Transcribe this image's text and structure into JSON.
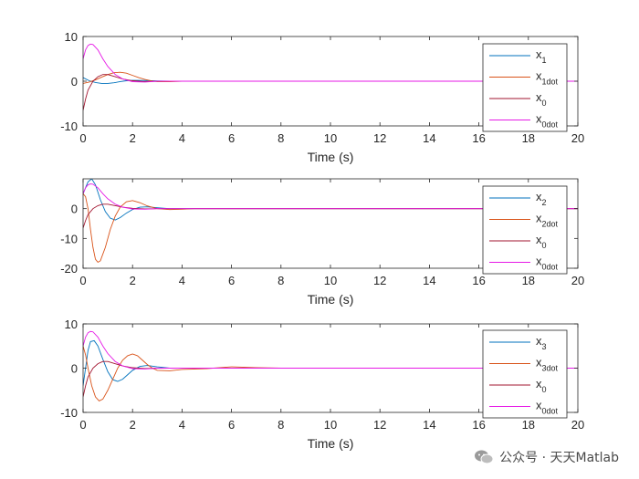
{
  "watermark": {
    "text": "公众号 · 天天Matlab"
  },
  "chart_data": [
    {
      "type": "line",
      "xlabel": "Time (s)",
      "xlim": [
        0,
        20
      ],
      "ylim": [
        -10,
        10
      ],
      "xticks": [
        0,
        2,
        4,
        6,
        8,
        10,
        12,
        14,
        16,
        18,
        20
      ],
      "yticks": [
        -10,
        0,
        10
      ],
      "legend_position": "top-right",
      "series": [
        {
          "name": "x1",
          "base": "x",
          "sub": "1",
          "color": "#0072BD",
          "points": [
            [
              0,
              0.8
            ],
            [
              0.25,
              0.1
            ],
            [
              0.5,
              -0.3
            ],
            [
              0.75,
              -0.5
            ],
            [
              1.0,
              -0.5
            ],
            [
              1.25,
              -0.35
            ],
            [
              1.5,
              -0.1
            ],
            [
              1.75,
              0.1
            ],
            [
              2.0,
              0.2
            ],
            [
              2.5,
              0.15
            ],
            [
              3.0,
              0.05
            ],
            [
              3.5,
              0
            ],
            [
              4.0,
              0
            ],
            [
              20,
              0
            ]
          ]
        },
        {
          "name": "x1dot",
          "base": "x",
          "sub": "1dot",
          "color": "#D95319",
          "points": [
            [
              0,
              -0.5
            ],
            [
              0.25,
              -0.2
            ],
            [
              0.5,
              0.3
            ],
            [
              0.75,
              0.9
            ],
            [
              1.0,
              1.5
            ],
            [
              1.25,
              1.9
            ],
            [
              1.5,
              2.0
            ],
            [
              1.75,
              1.8
            ],
            [
              2.0,
              1.3
            ],
            [
              2.25,
              0.8
            ],
            [
              2.5,
              0.4
            ],
            [
              2.75,
              0.1
            ],
            [
              3.0,
              -0.1
            ],
            [
              3.5,
              -0.1
            ],
            [
              4.0,
              0
            ],
            [
              20,
              0
            ]
          ]
        },
        {
          "name": "x0",
          "base": "x",
          "sub": "0",
          "color": "#A2142F",
          "points": [
            [
              0,
              -6.5
            ],
            [
              0.1,
              -4.0
            ],
            [
              0.2,
              -2.0
            ],
            [
              0.4,
              0
            ],
            [
              0.6,
              1.0
            ],
            [
              0.8,
              1.5
            ],
            [
              1.0,
              1.5
            ],
            [
              1.3,
              1.0
            ],
            [
              1.6,
              0.5
            ],
            [
              2.0,
              0.1
            ],
            [
              2.5,
              -0.1
            ],
            [
              3.0,
              0
            ],
            [
              20,
              0
            ]
          ]
        },
        {
          "name": "x0dot",
          "base": "x",
          "sub": "0dot",
          "color": "#E619E6",
          "points": [
            [
              0,
              5.0
            ],
            [
              0.1,
              7.0
            ],
            [
              0.2,
              8.0
            ],
            [
              0.3,
              8.3
            ],
            [
              0.4,
              8.2
            ],
            [
              0.6,
              7.0
            ],
            [
              0.8,
              5.0
            ],
            [
              1.0,
              3.3
            ],
            [
              1.3,
              1.5
            ],
            [
              1.6,
              0.5
            ],
            [
              2.0,
              -0.1
            ],
            [
              2.5,
              -0.2
            ],
            [
              3.0,
              0
            ],
            [
              20,
              0
            ]
          ]
        }
      ]
    },
    {
      "type": "line",
      "xlabel": "Time (s)",
      "xlim": [
        0,
        20
      ],
      "ylim": [
        -20,
        10
      ],
      "xticks": [
        0,
        2,
        4,
        6,
        8,
        10,
        12,
        14,
        16,
        18,
        20
      ],
      "yticks": [
        -20,
        -10,
        0
      ],
      "legend_position": "top-right",
      "series": [
        {
          "name": "x2",
          "base": "x",
          "sub": "2",
          "color": "#0072BD",
          "points": [
            [
              0,
              5.0
            ],
            [
              0.2,
              9.0
            ],
            [
              0.35,
              10.0
            ],
            [
              0.5,
              8.0
            ],
            [
              0.7,
              3.0
            ],
            [
              0.9,
              -1.0
            ],
            [
              1.1,
              -3.2
            ],
            [
              1.3,
              -3.8
            ],
            [
              1.5,
              -3.0
            ],
            [
              1.75,
              -1.5
            ],
            [
              2.0,
              -0.3
            ],
            [
              2.3,
              0.5
            ],
            [
              2.6,
              0.6
            ],
            [
              3.0,
              0.3
            ],
            [
              3.5,
              0
            ],
            [
              20,
              0
            ]
          ]
        },
        {
          "name": "x2dot",
          "base": "x",
          "sub": "2dot",
          "color": "#D95319",
          "points": [
            [
              0,
              5.0
            ],
            [
              0.1,
              4.0
            ],
            [
              0.2,
              0
            ],
            [
              0.3,
              -7.0
            ],
            [
              0.4,
              -13.0
            ],
            [
              0.5,
              -17.0
            ],
            [
              0.6,
              -18.0
            ],
            [
              0.7,
              -17.5
            ],
            [
              0.9,
              -13.0
            ],
            [
              1.1,
              -7.0
            ],
            [
              1.3,
              -2.5
            ],
            [
              1.5,
              0.5
            ],
            [
              1.75,
              2.3
            ],
            [
              2.0,
              2.7
            ],
            [
              2.3,
              2.0
            ],
            [
              2.6,
              0.9
            ],
            [
              3.0,
              0
            ],
            [
              3.5,
              -0.3
            ],
            [
              4.0,
              -0.2
            ],
            [
              4.5,
              0
            ],
            [
              20,
              0
            ]
          ]
        },
        {
          "name": "x0",
          "base": "x",
          "sub": "0",
          "color": "#A2142F",
          "points": [
            [
              0,
              -6.5
            ],
            [
              0.1,
              -4.0
            ],
            [
              0.2,
              -2.0
            ],
            [
              0.4,
              0
            ],
            [
              0.6,
              1.0
            ],
            [
              0.8,
              1.5
            ],
            [
              1.0,
              1.5
            ],
            [
              1.3,
              1.0
            ],
            [
              1.6,
              0.5
            ],
            [
              2.0,
              0.1
            ],
            [
              2.5,
              -0.1
            ],
            [
              3.0,
              0
            ],
            [
              20,
              0
            ]
          ]
        },
        {
          "name": "x0dot",
          "base": "x",
          "sub": "0dot",
          "color": "#E619E6",
          "points": [
            [
              0,
              5.0
            ],
            [
              0.1,
              7.0
            ],
            [
              0.2,
              8.0
            ],
            [
              0.3,
              8.3
            ],
            [
              0.4,
              8.2
            ],
            [
              0.6,
              7.0
            ],
            [
              0.8,
              5.0
            ],
            [
              1.0,
              3.3
            ],
            [
              1.3,
              1.5
            ],
            [
              1.6,
              0.5
            ],
            [
              2.0,
              -0.1
            ],
            [
              2.5,
              -0.2
            ],
            [
              3.0,
              0
            ],
            [
              20,
              0
            ]
          ]
        }
      ]
    },
    {
      "type": "line",
      "xlabel": "Time (s)",
      "xlim": [
        0,
        20
      ],
      "ylim": [
        -10,
        10
      ],
      "xticks": [
        0,
        2,
        4,
        6,
        8,
        10,
        12,
        14,
        16,
        18,
        20
      ],
      "yticks": [
        -10,
        0,
        10
      ],
      "legend_position": "top-right",
      "series": [
        {
          "name": "x3",
          "base": "x",
          "sub": "3",
          "color": "#0072BD",
          "points": [
            [
              0,
              -4.0
            ],
            [
              0.1,
              0
            ],
            [
              0.2,
              4.0
            ],
            [
              0.3,
              6.0
            ],
            [
              0.45,
              6.2
            ],
            [
              0.6,
              5.0
            ],
            [
              0.8,
              2.0
            ],
            [
              1.0,
              -0.8
            ],
            [
              1.2,
              -2.6
            ],
            [
              1.4,
              -3.0
            ],
            [
              1.6,
              -2.5
            ],
            [
              1.8,
              -1.5
            ],
            [
              2.0,
              -0.5
            ],
            [
              2.3,
              0.4
            ],
            [
              2.6,
              0.6
            ],
            [
              3.0,
              0.3
            ],
            [
              3.5,
              0
            ],
            [
              20,
              0
            ]
          ]
        },
        {
          "name": "x3dot",
          "base": "x",
          "sub": "3dot",
          "color": "#D95319",
          "points": [
            [
              0,
              5.0
            ],
            [
              0.1,
              3.0
            ],
            [
              0.2,
              0
            ],
            [
              0.35,
              -4.0
            ],
            [
              0.5,
              -6.5
            ],
            [
              0.65,
              -7.4
            ],
            [
              0.8,
              -7.0
            ],
            [
              1.0,
              -5.0
            ],
            [
              1.2,
              -2.5
            ],
            [
              1.4,
              0
            ],
            [
              1.6,
              1.8
            ],
            [
              1.8,
              2.8
            ],
            [
              2.0,
              3.2
            ],
            [
              2.2,
              2.8
            ],
            [
              2.4,
              1.8
            ],
            [
              2.6,
              0.8
            ],
            [
              2.8,
              0
            ],
            [
              3.0,
              -0.5
            ],
            [
              3.5,
              -0.6
            ],
            [
              4.0,
              -0.3
            ],
            [
              5.0,
              -0.1
            ],
            [
              6.0,
              0.3
            ],
            [
              7.0,
              0.1
            ],
            [
              8.0,
              0
            ],
            [
              20,
              0
            ]
          ]
        },
        {
          "name": "x0",
          "base": "x",
          "sub": "0",
          "color": "#A2142F",
          "points": [
            [
              0,
              -6.5
            ],
            [
              0.1,
              -4.0
            ],
            [
              0.2,
              -2.0
            ],
            [
              0.4,
              0
            ],
            [
              0.6,
              1.0
            ],
            [
              0.8,
              1.5
            ],
            [
              1.0,
              1.5
            ],
            [
              1.3,
              1.0
            ],
            [
              1.6,
              0.5
            ],
            [
              2.0,
              0.1
            ],
            [
              2.5,
              -0.1
            ],
            [
              3.0,
              0
            ],
            [
              20,
              0
            ]
          ]
        },
        {
          "name": "x0dot",
          "base": "x",
          "sub": "0dot",
          "color": "#E619E6",
          "points": [
            [
              0,
              5.0
            ],
            [
              0.1,
              7.0
            ],
            [
              0.2,
              8.0
            ],
            [
              0.3,
              8.3
            ],
            [
              0.4,
              8.2
            ],
            [
              0.6,
              7.0
            ],
            [
              0.8,
              5.0
            ],
            [
              1.0,
              3.3
            ],
            [
              1.3,
              1.5
            ],
            [
              1.6,
              0.5
            ],
            [
              2.0,
              -0.1
            ],
            [
              2.5,
              -0.2
            ],
            [
              3.0,
              0
            ],
            [
              20,
              0
            ]
          ]
        }
      ]
    }
  ]
}
